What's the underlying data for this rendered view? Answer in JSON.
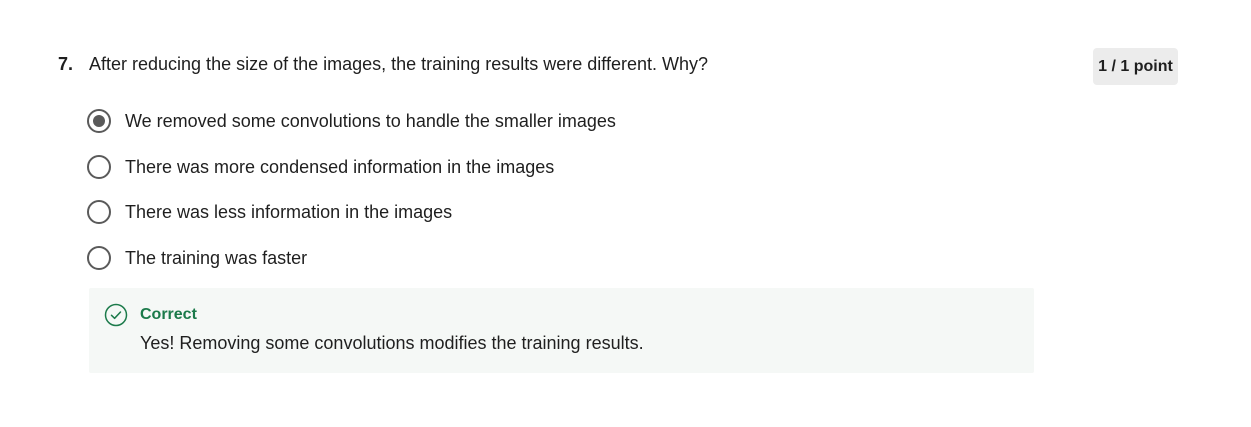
{
  "question": {
    "number": "7.",
    "text": "After reducing the size of the images, the training results were different. Why?",
    "score": "1 / 1 point"
  },
  "options": [
    {
      "label": "We removed some convolutions to handle the smaller images",
      "selected": true
    },
    {
      "label": "There was more condensed information in the images",
      "selected": false
    },
    {
      "label": "There was less information in the images",
      "selected": false
    },
    {
      "label": "The training was faster",
      "selected": false
    }
  ],
  "feedback": {
    "icon": "check-circle-icon",
    "title": "Correct",
    "text": "Yes! Removing some convolutions modifies the training results.",
    "color": "#1b7a4a",
    "background": "#f5f8f6"
  }
}
